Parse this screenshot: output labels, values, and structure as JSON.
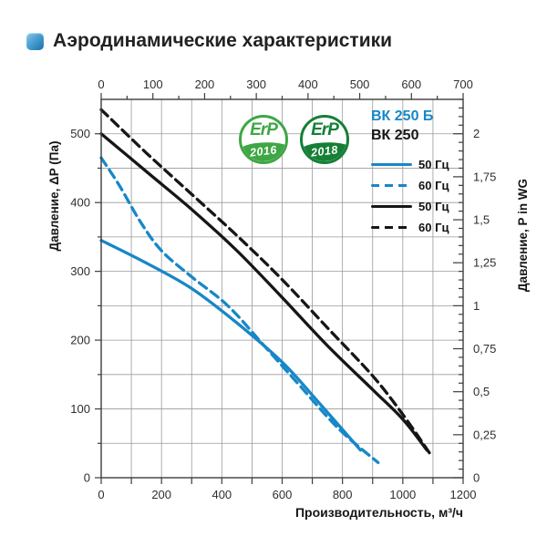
{
  "title": "Аэродинамические характеристики",
  "accent_color": "#2e8fc8",
  "chart_data": {
    "type": "line",
    "x_bottom": {
      "label": "Производительность, м³/ч",
      "min": 0,
      "max": 1200,
      "major": 200,
      "minor": 100,
      "tick_labels": [
        "0",
        "200",
        "400",
        "600",
        "800",
        "1000",
        "1200"
      ]
    },
    "x_top": {
      "label": "",
      "min": 0,
      "max": 700,
      "major": 100,
      "minor": 50,
      "tick_labels": [
        "0",
        "100",
        "200",
        "300",
        "400",
        "500",
        "600",
        "700"
      ]
    },
    "y_left": {
      "label": "Давление, ΔP (Па)",
      "min": 0,
      "max": 550,
      "major": 100,
      "minor": 50,
      "tick_labels": [
        "0",
        "100",
        "200",
        "300",
        "400",
        "500"
      ]
    },
    "y_right": {
      "label": "Давление, P in WG",
      "min": 0,
      "max": 2.2,
      "major": 0.25,
      "minor": 0.05,
      "tick_labels": [
        "0",
        "0,25",
        "0,5",
        "0,75",
        "1",
        "1,25",
        "1,5",
        "1,75",
        "2"
      ]
    },
    "grid": true,
    "legend_position": "top-right-inside",
    "legend": {
      "models": [
        {
          "label": "ВК 250 Б",
          "color": "#1787c8"
        },
        {
          "label": "ВК 250",
          "color": "#161616"
        }
      ],
      "entries": [
        {
          "label": "50 Гц",
          "color": "#1787c8",
          "dash": false
        },
        {
          "label": "60 Гц",
          "color": "#1787c8",
          "dash": true
        },
        {
          "label": "50 Гц",
          "color": "#161616",
          "dash": false
        },
        {
          "label": "60 Гц",
          "color": "#161616",
          "dash": true
        }
      ]
    },
    "badges": [
      {
        "text": "ErP",
        "year": "2016",
        "color": "#3fa646"
      },
      {
        "text": "ErP",
        "year": "2018",
        "color": "#157f36"
      }
    ],
    "series": [
      {
        "name": "ВК 250 Б — 50 Гц",
        "model": "ВК 250 Б",
        "freq": "50 Гц",
        "color": "#1787c8",
        "dash": false,
        "points": [
          [
            0,
            345
          ],
          [
            150,
            312
          ],
          [
            300,
            275
          ],
          [
            450,
            225
          ],
          [
            600,
            168
          ],
          [
            720,
            110
          ],
          [
            860,
            40
          ]
        ]
      },
      {
        "name": "ВК 250 Б — 60 Гц",
        "model": "ВК 250 Б",
        "freq": "60 Гц",
        "color": "#1787c8",
        "dash": true,
        "points": [
          [
            0,
            465
          ],
          [
            60,
            425
          ],
          [
            130,
            372
          ],
          [
            200,
            330
          ],
          [
            300,
            292
          ],
          [
            420,
            250
          ],
          [
            540,
            192
          ],
          [
            660,
            133
          ],
          [
            790,
            70
          ],
          [
            918,
            22
          ]
        ]
      },
      {
        "name": "ВК 250 — 50 Гц",
        "model": "ВК 250",
        "freq": "50 Гц",
        "color": "#161616",
        "dash": false,
        "points": [
          [
            0,
            500
          ],
          [
            150,
            445
          ],
          [
            300,
            390
          ],
          [
            450,
            330
          ],
          [
            600,
            262
          ],
          [
            750,
            192
          ],
          [
            900,
            128
          ],
          [
            1000,
            85
          ],
          [
            1080,
            40
          ]
        ]
      },
      {
        "name": "ВК 250 — 60 Гц",
        "model": "ВК 250",
        "freq": "60 Гц",
        "color": "#161616",
        "dash": true,
        "points": [
          [
            0,
            535
          ],
          [
            150,
            472
          ],
          [
            300,
            412
          ],
          [
            450,
            352
          ],
          [
            600,
            288
          ],
          [
            750,
            218
          ],
          [
            900,
            148
          ],
          [
            1000,
            92
          ],
          [
            1090,
            35
          ]
        ]
      }
    ]
  }
}
